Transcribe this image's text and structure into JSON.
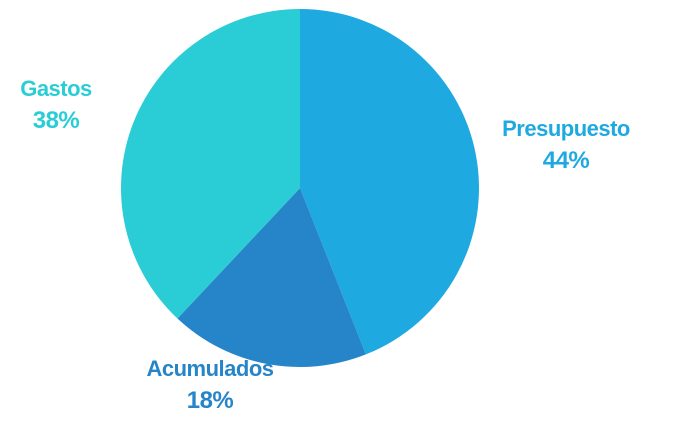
{
  "chart_data": {
    "type": "pie",
    "start_angle_deg": 0,
    "direction": "clockwise",
    "slices": [
      {
        "label": "Presupuesto",
        "value": 44,
        "value_text": "44%",
        "color": "#1FA9E1",
        "label_color": "#1FA9E1"
      },
      {
        "label": "Acumulados",
        "value": 18,
        "value_text": "18%",
        "color": "#2685C8",
        "label_color": "#2685C8"
      },
      {
        "label": "Gastos",
        "value": 38,
        "value_text": "38%",
        "color": "#2ACDD6",
        "label_color": "#2ACDD6"
      }
    ]
  }
}
